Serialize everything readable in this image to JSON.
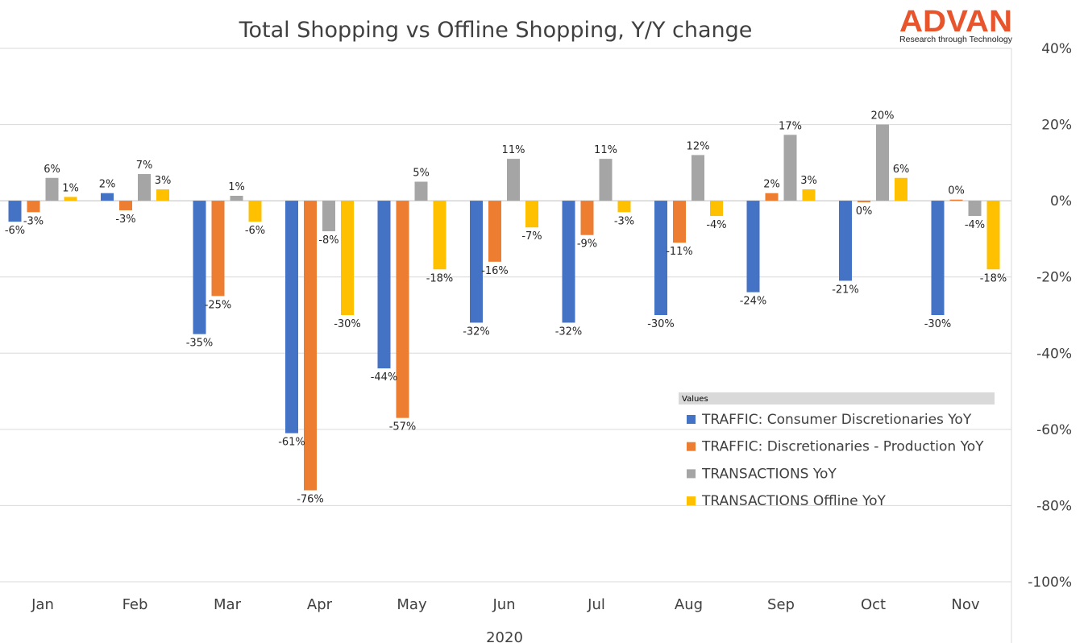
{
  "chart_data": {
    "type": "bar",
    "title": "Total Shopping vs Offline Shopping, Y/Y change",
    "categories": [
      "Jan",
      "Feb",
      "Mar",
      "Apr",
      "May",
      "Jun",
      "Jul",
      "Aug",
      "Sep",
      "Oct",
      "Nov"
    ],
    "group_label": "2020",
    "ylim": [
      -100,
      40
    ],
    "yticks": [
      40,
      20,
      0,
      -20,
      -40,
      -60,
      -80,
      -100
    ],
    "ytick_labels": [
      "40%",
      "20%",
      "0%",
      "-20%",
      "-40%",
      "-60%",
      "-80%",
      "-100%"
    ],
    "grid": true,
    "legend_header": "Values",
    "legend_position": "bottom-right",
    "series": [
      {
        "name": "TRAFFIC: Consumer Discretionaries YoY",
        "color": "#4472c4",
        "values": [
          -5.5,
          2,
          -35,
          -61,
          -44,
          -32,
          -32,
          -30,
          -24,
          -21,
          -30
        ],
        "labels": [
          "-6%",
          "2%",
          "-35%",
          "-61%",
          "-44%",
          "-32%",
          "-32%",
          "-30%",
          "-24%",
          "-21%",
          "-30%"
        ]
      },
      {
        "name": "TRAFFIC: Discretionaries - Production YoY",
        "color": "#ed7d31",
        "values": [
          -3,
          -2.5,
          -25,
          -76,
          -57,
          -16,
          -9,
          -11,
          2,
          -0.4,
          0.3
        ],
        "labels": [
          "-3%",
          "-3%",
          "-25%",
          "-76%",
          "-57%",
          "-16%",
          "-9%",
          "-11%",
          "2%",
          "0%",
          "0%"
        ]
      },
      {
        "name": "TRANSACTIONS YoY",
        "color": "#a5a5a5",
        "values": [
          6,
          7,
          1.3,
          -8,
          5,
          11,
          11,
          12,
          17.3,
          20,
          -4
        ],
        "labels": [
          "6%",
          "7%",
          "1%",
          "-8%",
          "5%",
          "11%",
          "11%",
          "12%",
          "17%",
          "20%",
          "-4%"
        ]
      },
      {
        "name": "TRANSACTIONS Offline YoY",
        "color": "#ffc000",
        "values": [
          1,
          3,
          -5.5,
          -30,
          -18,
          -7,
          -3,
          -4,
          3,
          6,
          -18
        ],
        "labels": [
          "1%",
          "3%",
          "-6%",
          "-30%",
          "-18%",
          "-7%",
          "-3%",
          "-4%",
          "3%",
          "6%",
          "-18%"
        ]
      }
    ]
  },
  "logo": {
    "name": "ADVAN",
    "tagline": "Research through Technology",
    "color": "#e8542c"
  }
}
